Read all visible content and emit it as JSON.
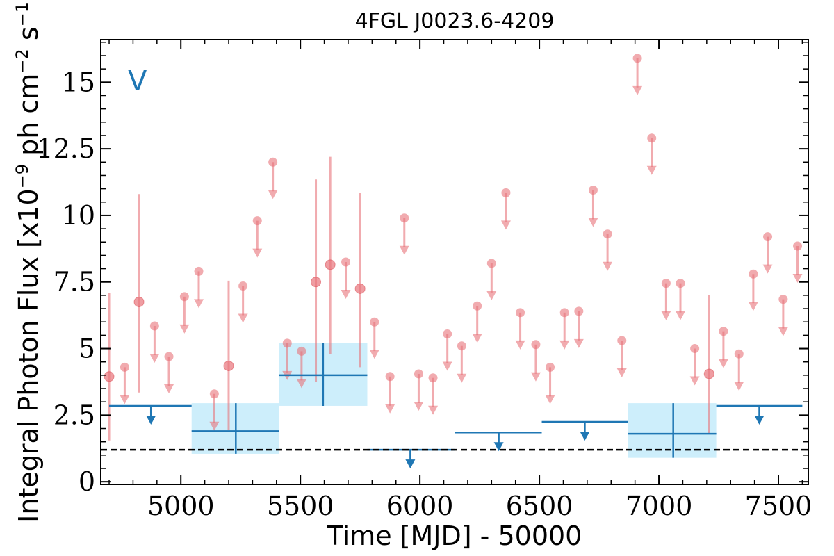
{
  "chart_data": {
    "type": "scatter",
    "title": "4FGL J0023.6-4209",
    "xlabel": "Time [MJD] - 50000",
    "ylabel": "Integral Photon Flux [x10^-9 ph cm^-2 s^-1]",
    "ylabel_parts": {
      "base1": "Integral Photon Flux [x10",
      "exp1": "−9",
      "base2": " ph cm",
      "exp2": "−2",
      "base3": " s",
      "exp3": "−1",
      "base4": "]"
    },
    "panel_label": "V",
    "xlim": [
      4665,
      7625
    ],
    "ylim": [
      -0.1,
      16.6
    ],
    "xticks": [
      5000,
      5500,
      6000,
      6500,
      7000,
      7500
    ],
    "xtick_labels": [
      "5000",
      "5500",
      "6000",
      "6500",
      "7000",
      "7500"
    ],
    "yticks": [
      0,
      2.5,
      5,
      7.5,
      10,
      12.5,
      15
    ],
    "ytick_labels": [
      "0",
      "2.5",
      "5",
      "7.5",
      "10",
      "12.5",
      "15"
    ],
    "reference_line": 1.2,
    "colors": {
      "short_bins": "#e8737a",
      "long_bins": "#1f77b4",
      "long_bins_fill": "#cdeefb",
      "reference_line": "#000000",
      "panel_label": "#1f77b4"
    },
    "series": [
      {
        "detections": [
          {
            "x": 4700,
            "y": 3.95,
            "ylo": 1.55,
            "yhi": 7.1
          },
          {
            "x": 4825,
            "y": 6.75,
            "ylo": 3.35,
            "yhi": 10.8
          },
          {
            "x": 5200,
            "y": 4.35,
            "ylo": 1.95,
            "yhi": 7.55
          },
          {
            "x": 5565,
            "y": 7.5,
            "ylo": 3.75,
            "yhi": 11.35
          },
          {
            "x": 5625,
            "y": 8.15,
            "ylo": 4.8,
            "yhi": 12.2
          },
          {
            "x": 5750,
            "y": 7.25,
            "ylo": 4.3,
            "yhi": 10.85
          },
          {
            "x": 7210,
            "y": 4.05,
            "ylo": 1.8,
            "yhi": 7.0
          }
        ],
        "upper_limits": [
          {
            "x": 4765,
            "y": 4.3
          },
          {
            "x": 4890,
            "y": 5.85
          },
          {
            "x": 4950,
            "y": 4.7
          },
          {
            "x": 5015,
            "y": 6.95
          },
          {
            "x": 5075,
            "y": 7.9
          },
          {
            "x": 5140,
            "y": 3.3
          },
          {
            "x": 5260,
            "y": 7.35
          },
          {
            "x": 5320,
            "y": 9.8
          },
          {
            "x": 5385,
            "y": 12.0
          },
          {
            "x": 5445,
            "y": 5.2
          },
          {
            "x": 5505,
            "y": 4.9
          },
          {
            "x": 5690,
            "y": 8.25
          },
          {
            "x": 5810,
            "y": 6.0
          },
          {
            "x": 5875,
            "y": 3.95
          },
          {
            "x": 5935,
            "y": 9.9
          },
          {
            "x": 5995,
            "y": 4.05
          },
          {
            "x": 6055,
            "y": 3.9
          },
          {
            "x": 6115,
            "y": 5.55
          },
          {
            "x": 6175,
            "y": 5.1
          },
          {
            "x": 6240,
            "y": 6.6
          },
          {
            "x": 6300,
            "y": 8.2
          },
          {
            "x": 6360,
            "y": 10.85
          },
          {
            "x": 6420,
            "y": 6.35
          },
          {
            "x": 6485,
            "y": 5.15
          },
          {
            "x": 6545,
            "y": 4.3
          },
          {
            "x": 6605,
            "y": 6.35
          },
          {
            "x": 6665,
            "y": 6.4
          },
          {
            "x": 6725,
            "y": 10.95
          },
          {
            "x": 6785,
            "y": 9.3
          },
          {
            "x": 6845,
            "y": 5.3
          },
          {
            "x": 6910,
            "y": 15.9
          },
          {
            "x": 6970,
            "y": 12.9
          },
          {
            "x": 7030,
            "y": 7.45
          },
          {
            "x": 7090,
            "y": 7.45
          },
          {
            "x": 7150,
            "y": 5.0
          },
          {
            "x": 7270,
            "y": 5.65
          },
          {
            "x": 7335,
            "y": 4.8
          },
          {
            "x": 7395,
            "y": 7.8
          },
          {
            "x": 7455,
            "y": 9.2
          },
          {
            "x": 7520,
            "y": 6.85
          },
          {
            "x": 7580,
            "y": 8.85
          }
        ]
      },
      {
        "detections": [
          {
            "x0": 5045,
            "x1": 5410,
            "x": 5230,
            "y": 1.9,
            "ylo": 1.05,
            "yhi": 2.95
          },
          {
            "x0": 5410,
            "x1": 5780,
            "x": 5595,
            "y": 4.0,
            "ylo": 2.85,
            "yhi": 5.2
          },
          {
            "x0": 6870,
            "x1": 7240,
            "x": 7060,
            "y": 1.8,
            "ylo": 0.9,
            "yhi": 2.95
          }
        ],
        "upper_limits": [
          {
            "x0": 4700,
            "x1": 5045,
            "x": 4875,
            "y": 2.85
          },
          {
            "x0": 5780,
            "x1": 6145,
            "x": 5960,
            "y": 1.2
          },
          {
            "x0": 6145,
            "x1": 6510,
            "x": 6330,
            "y": 1.85
          },
          {
            "x0": 6510,
            "x1": 6870,
            "x": 6690,
            "y": 2.25
          },
          {
            "x0": 7240,
            "x1": 7600,
            "x": 7420,
            "y": 2.85
          }
        ]
      }
    ]
  }
}
